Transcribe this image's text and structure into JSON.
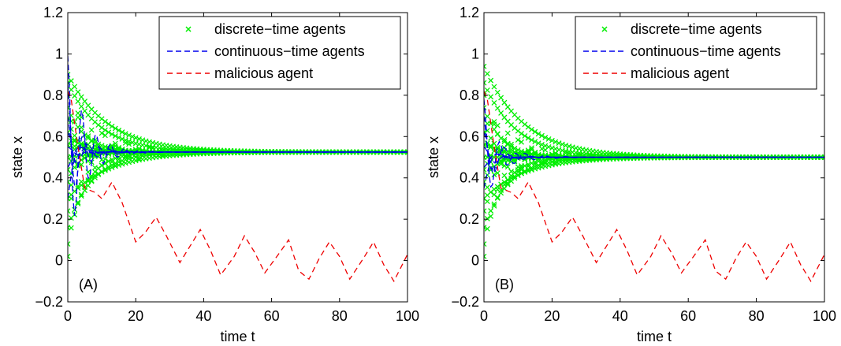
{
  "chart_data": [
    {
      "type": "line",
      "panel_label": "(A)",
      "xlabel": "time t",
      "ylabel": "state x",
      "xlim": [
        0,
        100
      ],
      "ylim": [
        -0.2,
        1.2
      ],
      "xticks": [
        "0",
        "20",
        "40",
        "60",
        "80",
        "100"
      ],
      "yticks": [
        "−0.2",
        "0",
        "0.2",
        "0.4",
        "0.6",
        "0.8",
        "1",
        "1.2"
      ],
      "legend_position": "top-right",
      "legend": [
        "discrete−time agents",
        "continuous−time agents",
        "malicious agent"
      ],
      "consensus_value": 0.525,
      "series": [
        {
          "name": "discrete−time agents",
          "style": "x-markers",
          "color": "#00ee00",
          "initial_values": [
            0.02,
            0.08,
            0.16,
            0.24,
            0.3,
            0.38,
            0.44,
            0.5,
            0.56,
            0.62,
            0.68,
            0.74,
            0.8,
            0.86,
            0.9
          ],
          "steady_value": 0.525
        },
        {
          "name": "continuous−time agents",
          "style": "dashed",
          "color": "#0000ee",
          "initial_values": [
            0.3,
            0.45,
            0.55,
            0.62,
            0.7,
            0.85,
            0.99
          ],
          "steady_value": 0.525
        },
        {
          "name": "malicious agent",
          "style": "dashed",
          "color": "#ee0000",
          "x": [
            0,
            1,
            3,
            5,
            8,
            10,
            13,
            16,
            20,
            23,
            26,
            29,
            33,
            36,
            39,
            42,
            45,
            49,
            52,
            55,
            58,
            62,
            65,
            68,
            71,
            74,
            77,
            80,
            83,
            87,
            90,
            93,
            96,
            100
          ],
          "y": [
            0.82,
            0.78,
            0.55,
            0.35,
            0.33,
            0.3,
            0.38,
            0.28,
            0.09,
            0.14,
            0.21,
            0.12,
            -0.01,
            0.07,
            0.15,
            0.05,
            -0.07,
            0.02,
            0.12,
            0.04,
            -0.06,
            0.03,
            0.1,
            -0.05,
            -0.09,
            0.01,
            0.09,
            0.02,
            -0.09,
            0.01,
            0.09,
            -0.02,
            -0.1,
            0.03
          ]
        }
      ]
    },
    {
      "type": "line",
      "panel_label": "(B)",
      "xlabel": "time t",
      "ylabel": "state x",
      "xlim": [
        0,
        100
      ],
      "ylim": [
        -0.2,
        1.2
      ],
      "xticks": [
        "0",
        "20",
        "40",
        "60",
        "80",
        "100"
      ],
      "yticks": [
        "−0.2",
        "0",
        "0.2",
        "0.4",
        "0.6",
        "0.8",
        "1",
        "1.2"
      ],
      "legend_position": "top-right",
      "legend": [
        "discrete−time agents",
        "continuous−time agents",
        "malicious agent"
      ],
      "consensus_value": 0.5,
      "series": [
        {
          "name": "discrete−time agents",
          "style": "x-markers",
          "color": "#00ee00",
          "initial_values": [
            0.02,
            0.08,
            0.16,
            0.24,
            0.3,
            0.38,
            0.44,
            0.5,
            0.56,
            0.62,
            0.68,
            0.74,
            0.8,
            0.86,
            0.94
          ],
          "steady_value": 0.5
        },
        {
          "name": "continuous−time agents",
          "style": "dashed",
          "color": "#0000ee",
          "initial_values": [
            0.35,
            0.45,
            0.55,
            0.62,
            0.7,
            0.78
          ],
          "steady_value": 0.5
        },
        {
          "name": "malicious agent",
          "style": "dashed",
          "color": "#ee0000",
          "x": [
            0,
            1,
            3,
            5,
            8,
            10,
            13,
            16,
            20,
            23,
            26,
            29,
            33,
            36,
            39,
            42,
            45,
            49,
            52,
            55,
            58,
            62,
            65,
            68,
            71,
            74,
            77,
            80,
            83,
            87,
            90,
            93,
            96,
            100
          ],
          "y": [
            0.82,
            0.78,
            0.55,
            0.35,
            0.33,
            0.3,
            0.38,
            0.28,
            0.09,
            0.14,
            0.21,
            0.12,
            -0.01,
            0.07,
            0.15,
            0.05,
            -0.07,
            0.02,
            0.12,
            0.04,
            -0.06,
            0.03,
            0.1,
            -0.05,
            -0.09,
            0.01,
            0.09,
            0.02,
            -0.09,
            0.01,
            0.09,
            -0.02,
            -0.1,
            0.03
          ]
        }
      ]
    }
  ]
}
